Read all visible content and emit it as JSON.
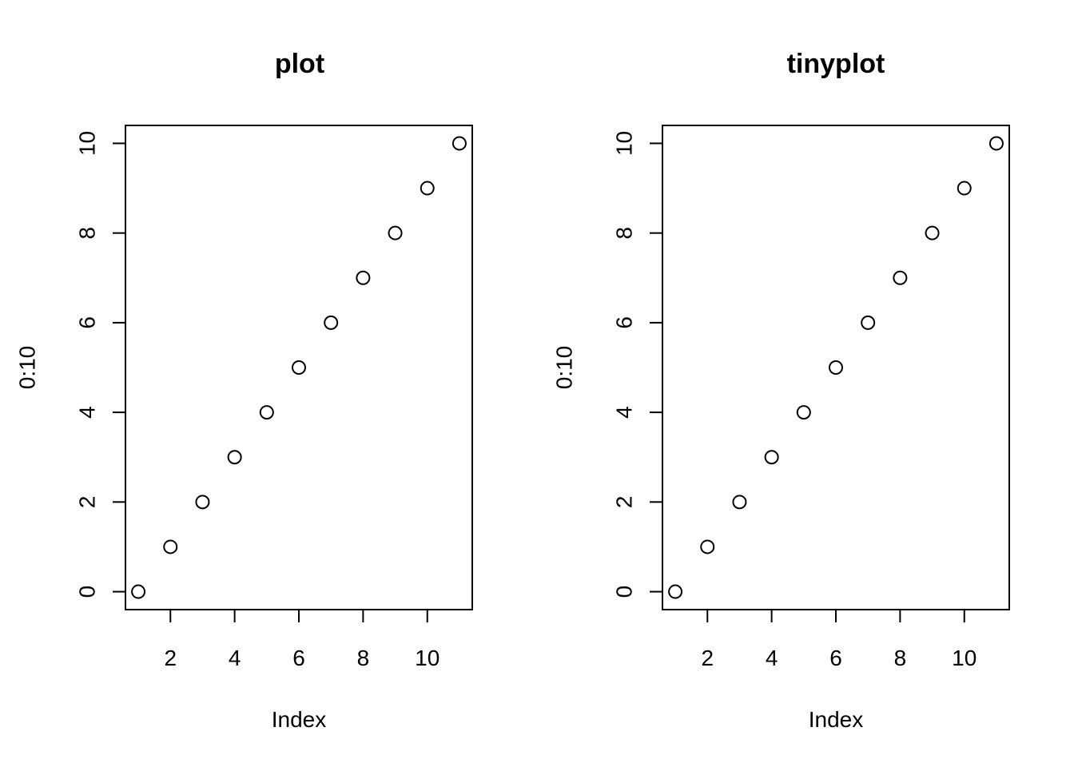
{
  "colors": {
    "background": "#ffffff",
    "foreground": "#000000"
  },
  "chart_data": [
    {
      "type": "scatter",
      "title": "plot",
      "xlabel": "Index",
      "ylabel": "0:10",
      "x": [
        1,
        2,
        3,
        4,
        5,
        6,
        7,
        8,
        9,
        10,
        11
      ],
      "y": [
        0,
        1,
        2,
        3,
        4,
        5,
        6,
        7,
        8,
        9,
        10
      ],
      "xlim": [
        0.6,
        11.4
      ],
      "ylim": [
        -0.4,
        10.4
      ],
      "x_ticks": [
        2,
        4,
        6,
        8,
        10
      ],
      "y_ticks": [
        0,
        2,
        4,
        6,
        8,
        10
      ],
      "marker": "open-circle",
      "grid": false,
      "box": true
    },
    {
      "type": "scatter",
      "title": "tinyplot",
      "xlabel": "Index",
      "ylabel": "0:10",
      "x": [
        1,
        2,
        3,
        4,
        5,
        6,
        7,
        8,
        9,
        10,
        11
      ],
      "y": [
        0,
        1,
        2,
        3,
        4,
        5,
        6,
        7,
        8,
        9,
        10
      ],
      "xlim": [
        0.6,
        11.4
      ],
      "ylim": [
        -0.4,
        10.4
      ],
      "x_ticks": [
        2,
        4,
        6,
        8,
        10
      ],
      "y_ticks": [
        0,
        2,
        4,
        6,
        8,
        10
      ],
      "marker": "open-circle",
      "grid": false,
      "box": true
    }
  ]
}
